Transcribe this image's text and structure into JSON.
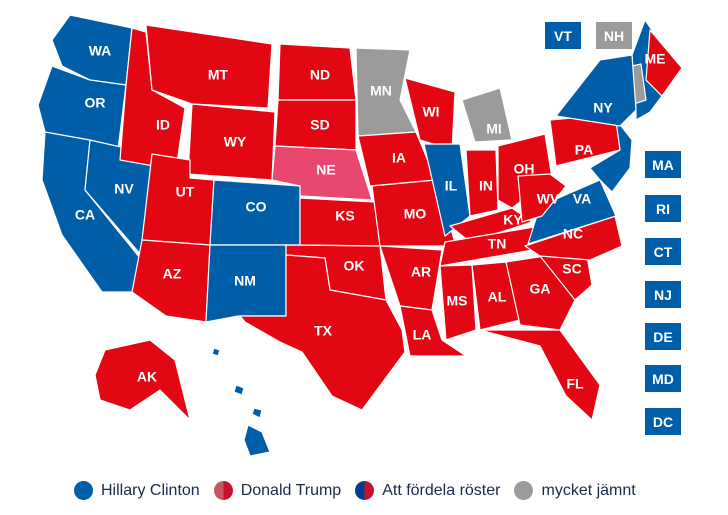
{
  "colors": {
    "clinton": "#005ea8",
    "trump": "#e30613",
    "trump_light": "#c8555f",
    "nebraska": "#e8476f",
    "split_blue": "#003d8f",
    "split_red": "#c8102e",
    "close": "#9b9b9b"
  },
  "states": [
    {
      "code": "WA",
      "winner": "clinton"
    },
    {
      "code": "OR",
      "winner": "clinton"
    },
    {
      "code": "CA",
      "winner": "clinton"
    },
    {
      "code": "NV",
      "winner": "clinton"
    },
    {
      "code": "ID",
      "winner": "trump"
    },
    {
      "code": "MT",
      "winner": "trump"
    },
    {
      "code": "WY",
      "winner": "trump"
    },
    {
      "code": "UT",
      "winner": "trump"
    },
    {
      "code": "AZ",
      "winner": "trump"
    },
    {
      "code": "CO",
      "winner": "clinton"
    },
    {
      "code": "NM",
      "winner": "clinton"
    },
    {
      "code": "ND",
      "winner": "trump"
    },
    {
      "code": "SD",
      "winner": "trump"
    },
    {
      "code": "NE",
      "winner": "split"
    },
    {
      "code": "KS",
      "winner": "trump"
    },
    {
      "code": "OK",
      "winner": "trump"
    },
    {
      "code": "TX",
      "winner": "trump"
    },
    {
      "code": "MN",
      "winner": "close"
    },
    {
      "code": "IA",
      "winner": "trump"
    },
    {
      "code": "MO",
      "winner": "trump"
    },
    {
      "code": "AR",
      "winner": "trump"
    },
    {
      "code": "LA",
      "winner": "trump"
    },
    {
      "code": "WI",
      "winner": "trump"
    },
    {
      "code": "IL",
      "winner": "clinton"
    },
    {
      "code": "MI",
      "winner": "close"
    },
    {
      "code": "IN",
      "winner": "trump"
    },
    {
      "code": "OH",
      "winner": "trump"
    },
    {
      "code": "KY",
      "winner": "trump"
    },
    {
      "code": "TN",
      "winner": "trump"
    },
    {
      "code": "MS",
      "winner": "trump"
    },
    {
      "code": "AL",
      "winner": "trump"
    },
    {
      "code": "GA",
      "winner": "trump"
    },
    {
      "code": "FL",
      "winner": "trump"
    },
    {
      "code": "SC",
      "winner": "trump"
    },
    {
      "code": "NC",
      "winner": "trump"
    },
    {
      "code": "VA",
      "winner": "clinton"
    },
    {
      "code": "WV",
      "winner": "trump"
    },
    {
      "code": "PA",
      "winner": "trump"
    },
    {
      "code": "NY",
      "winner": "clinton"
    },
    {
      "code": "ME",
      "winner": "split"
    },
    {
      "code": "AK",
      "winner": "trump"
    }
  ],
  "small_states": [
    {
      "code": "VT",
      "winner": "clinton"
    },
    {
      "code": "NH",
      "winner": "close"
    },
    {
      "code": "MA",
      "winner": "clinton"
    },
    {
      "code": "RI",
      "winner": "clinton"
    },
    {
      "code": "CT",
      "winner": "clinton"
    },
    {
      "code": "NJ",
      "winner": "clinton"
    },
    {
      "code": "DE",
      "winner": "clinton"
    },
    {
      "code": "MD",
      "winner": "clinton"
    },
    {
      "code": "DC",
      "winner": "clinton"
    }
  ],
  "legend": [
    {
      "label": "Hillary Clinton",
      "key": "clinton"
    },
    {
      "label": "Donald Trump",
      "key": "trump"
    },
    {
      "label": "Att fördela röster",
      "key": "split"
    },
    {
      "label": "mycket jämnt",
      "key": "close"
    }
  ]
}
